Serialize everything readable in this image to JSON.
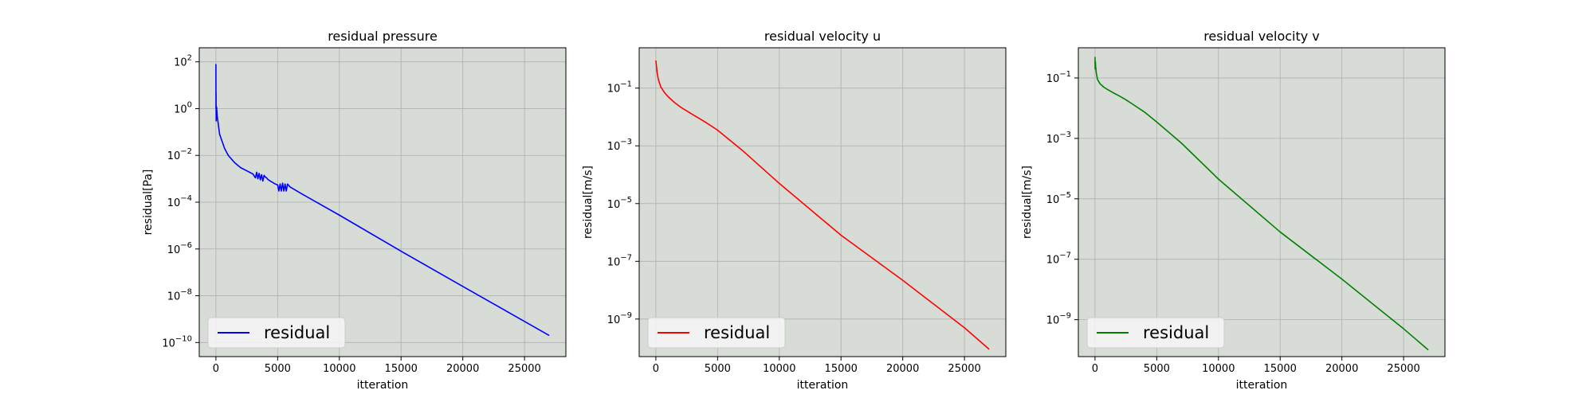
{
  "chart_data": [
    {
      "type": "line",
      "title": "residual pressure",
      "xlabel": "itteration",
      "ylabel": "residual[Pa]",
      "yscale": "log",
      "xlim": [
        -1350,
        28350
      ],
      "ylim": [
        2.5e-11,
        400
      ],
      "xticks": [
        0,
        5000,
        10000,
        15000,
        20000,
        25000
      ],
      "xtick_labels": [
        "0",
        "5000",
        "10000",
        "15000",
        "20000",
        "25000"
      ],
      "yticks": [
        100,
        1,
        0.01,
        0.0001,
        1e-06,
        1e-08,
        1e-10
      ],
      "ytick_bases": [
        "10",
        "10",
        "10",
        "10",
        "10",
        "10",
        "10"
      ],
      "ytick_exps": [
        "2",
        "0",
        "−2",
        "−4",
        "−6",
        "−8",
        "−10"
      ],
      "grid": true,
      "background": "#d7dcd7",
      "legend_position": "lower left",
      "series": [
        {
          "name": "residual",
          "color": "#0000ff",
          "x": [
            0,
            5,
            10,
            20,
            50,
            100,
            200,
            300,
            500,
            700,
            1000,
            1500,
            2000,
            2500,
            3000,
            3200,
            3300,
            3400,
            3500,
            3600,
            3700,
            3800,
            3900,
            4000,
            4100,
            4200,
            4400,
            4600,
            4800,
            5000,
            5100,
            5200,
            5300,
            5400,
            5500,
            5600,
            5700,
            5800,
            6000,
            7000,
            10000,
            15000,
            20000,
            25000,
            27000
          ],
          "y": [
            80,
            1.0,
            5,
            0.3,
            1.2,
            0.5,
            0.2,
            0.08,
            0.04,
            0.02,
            0.01,
            0.005,
            0.003,
            0.0022,
            0.0016,
            0.0011,
            0.0019,
            0.001,
            0.0017,
            0.0009,
            0.0015,
            0.0008,
            0.0014,
            0.0012,
            0.0011,
            0.00095,
            0.0008,
            0.0007,
            0.0006,
            0.00055,
            0.0003,
            0.0006,
            0.0003,
            0.00065,
            0.0003,
            0.0006,
            0.0003,
            0.0006,
            0.00045,
            0.00022,
            2.8e-05,
            8e-07,
            2.5e-08,
            8e-10,
            2e-10
          ]
        }
      ]
    },
    {
      "type": "line",
      "title": "residual velocity u",
      "xlabel": "itteration",
      "ylabel": "residual[m/s]",
      "yscale": "log",
      "xlim": [
        -1350,
        28350
      ],
      "ylim": [
        5e-11,
        2.5
      ],
      "xticks": [
        0,
        5000,
        10000,
        15000,
        20000,
        25000
      ],
      "xtick_labels": [
        "0",
        "5000",
        "10000",
        "15000",
        "20000",
        "25000"
      ],
      "yticks": [
        0.1,
        0.001,
        1e-05,
        1e-07,
        1e-09
      ],
      "ytick_bases": [
        "10",
        "10",
        "10",
        "10",
        "10"
      ],
      "ytick_exps": [
        "−1",
        "−3",
        "−5",
        "−7",
        "−9"
      ],
      "grid": true,
      "background": "#d7dcd7",
      "legend_position": "lower left",
      "series": [
        {
          "name": "residual",
          "color": "#ff0000",
          "x": [
            0,
            100,
            200,
            400,
            700,
            1000,
            1500,
            2000,
            3000,
            4000,
            5000,
            7000,
            10000,
            15000,
            20000,
            25000,
            27000
          ],
          "y": [
            0.9,
            0.35,
            0.2,
            0.11,
            0.07,
            0.05,
            0.032,
            0.022,
            0.012,
            0.0067,
            0.0035,
            0.0007,
            5e-05,
            8e-07,
            2.2e-08,
            5e-10,
            9e-11
          ]
        }
      ]
    },
    {
      "type": "line",
      "title": "residual velocity v",
      "xlabel": "itteration",
      "ylabel": "residual[m/s]",
      "yscale": "log",
      "xlim": [
        -1350,
        28350
      ],
      "ylim": [
        6e-11,
        1.0
      ],
      "xticks": [
        0,
        5000,
        10000,
        15000,
        20000,
        25000
      ],
      "xtick_labels": [
        "0",
        "5000",
        "10000",
        "15000",
        "20000",
        "25000"
      ],
      "yticks": [
        0.1,
        0.001,
        1e-05,
        1e-07,
        1e-09
      ],
      "ytick_bases": [
        "10",
        "10",
        "10",
        "10",
        "10"
      ],
      "ytick_exps": [
        "−1",
        "−3",
        "−5",
        "−7",
        "−9"
      ],
      "grid": true,
      "background": "#d7dcd7",
      "legend_position": "lower left",
      "series": [
        {
          "name": "residual",
          "color": "#008000",
          "x": [
            0,
            10,
            30,
            50,
            100,
            200,
            400,
            700,
            1000,
            1500,
            2000,
            2500,
            3000,
            4000,
            5000,
            7000,
            10000,
            15000,
            20000,
            25000,
            27000
          ],
          "y": [
            0.5,
            0.2,
            0.35,
            0.25,
            0.15,
            0.09,
            0.065,
            0.05,
            0.042,
            0.032,
            0.025,
            0.019,
            0.014,
            0.0075,
            0.0035,
            0.0007,
            4.5e-05,
            8e-07,
            2.2e-08,
            5e-10,
            1e-10
          ]
        }
      ]
    }
  ]
}
